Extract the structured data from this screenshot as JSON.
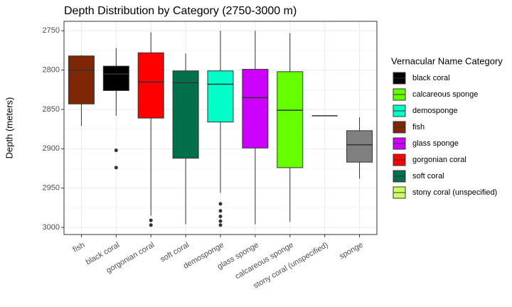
{
  "chart_data": {
    "type": "box",
    "title": "Depth Distribution by Category (2750-3000 m)",
    "y_label": "Depth (meters)",
    "categories": [
      "fish",
      "black coral",
      "gorgonian coral",
      "soft coral",
      "demosponge",
      "glass sponge",
      "calcareous sponge",
      "stony coral (unspecified)",
      "sponge"
    ],
    "boxes": [
      {
        "color": "#7f2704",
        "min": 2781,
        "q1": 2782,
        "median": 2800,
        "q3": 2843,
        "max": 2871,
        "outliers": []
      },
      {
        "color": "#000000",
        "min": 2772,
        "q1": 2795,
        "median": 2805,
        "q3": 2826,
        "max": 2858,
        "outliers": [
          2902,
          2924
        ]
      },
      {
        "color": "#ff0000",
        "min": 2752,
        "q1": 2778,
        "median": 2815,
        "q3": 2861,
        "max": 2985,
        "outliers": [
          2991,
          2997
        ]
      },
      {
        "color": "#00704a",
        "min": 2779,
        "q1": 2801,
        "median": 2816,
        "q3": 2912,
        "max": 2996,
        "outliers": []
      },
      {
        "color": "#00ffc8",
        "min": 2750,
        "q1": 2801,
        "median": 2818,
        "q3": 2866,
        "max": 2956,
        "outliers": [
          2970,
          2979,
          2986,
          2992,
          2997
        ]
      },
      {
        "color": "#cc00ff",
        "min": 2750,
        "q1": 2799,
        "median": 2835,
        "q3": 2899,
        "max": 2996,
        "outliers": []
      },
      {
        "color": "#66ff00",
        "min": 2753,
        "q1": 2802,
        "median": 2851,
        "q3": 2924,
        "max": 2993,
        "outliers": []
      },
      {
        "color": "#ccff66",
        "min": 2858,
        "q1": 2858,
        "median": 2858,
        "q3": 2858,
        "max": 2858,
        "outliers": []
      },
      {
        "color": "#808080",
        "min": 2860,
        "q1": 2877,
        "median": 2895,
        "q3": 2917,
        "max": 2938,
        "outliers": []
      }
    ],
    "ylim": [
      3009,
      2738
    ],
    "yticks": [
      2750,
      2800,
      2850,
      2900,
      2950,
      3000
    ],
    "grid": true,
    "legend": {
      "title": "Vernacular Name Category",
      "position": "right",
      "items": [
        {
          "name": "black coral",
          "color": "#000000"
        },
        {
          "name": "calcareous sponge",
          "color": "#66ff00"
        },
        {
          "name": "demosponge",
          "color": "#00ffc8"
        },
        {
          "name": "fish",
          "color": "#7f2704"
        },
        {
          "name": "glass sponge",
          "color": "#cc00ff"
        },
        {
          "name": "gorgonian coral",
          "color": "#ff0000"
        },
        {
          "name": "soft coral",
          "color": "#00704a"
        },
        {
          "name": "stony coral (unspecified)",
          "color": "#ccff66"
        }
      ]
    }
  }
}
